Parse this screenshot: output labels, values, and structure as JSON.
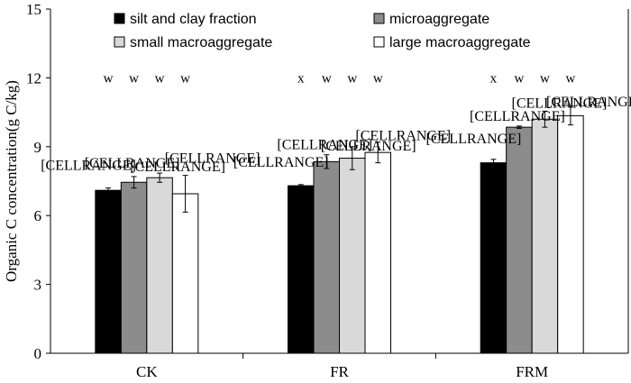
{
  "chart_data": {
    "type": "bar",
    "categories": [
      "CK",
      "FR",
      "FRM"
    ],
    "series": [
      {
        "name": "silt and clay fraction",
        "values": [
          7.1,
          7.3,
          8.3
        ],
        "errors": [
          0.1,
          0.05,
          0.15
        ],
        "color": "#000000"
      },
      {
        "name": "microaggregate",
        "values": [
          7.45,
          8.35,
          9.85
        ],
        "errors": [
          0.25,
          0.3,
          0.05
        ],
        "color": "#8c8c8c"
      },
      {
        "name": "small macroaggregate",
        "values": [
          7.65,
          8.5,
          10.2
        ],
        "errors": [
          0.2,
          0.5,
          0.35
        ],
        "color": "#d9d9d9"
      },
      {
        "name": "large macroaggregate",
        "values": [
          6.95,
          8.75,
          10.35
        ],
        "errors": [
          0.8,
          0.45,
          0.4
        ],
        "color": "#ffffff"
      }
    ],
    "ylabel": "Organic C concentration(g C/kg)",
    "xlabel": "",
    "ylim": [
      0,
      15
    ],
    "yticks": [
      0,
      3,
      6,
      9,
      12,
      15
    ],
    "grid": false,
    "legend_position": "top",
    "data_label_text": "[CELLRANGE]",
    "significance_letters": [
      [
        "w",
        "w",
        "w",
        "w"
      ],
      [
        "x",
        "w",
        "w",
        "w"
      ],
      [
        "x",
        "w",
        "w",
        "w"
      ]
    ]
  }
}
